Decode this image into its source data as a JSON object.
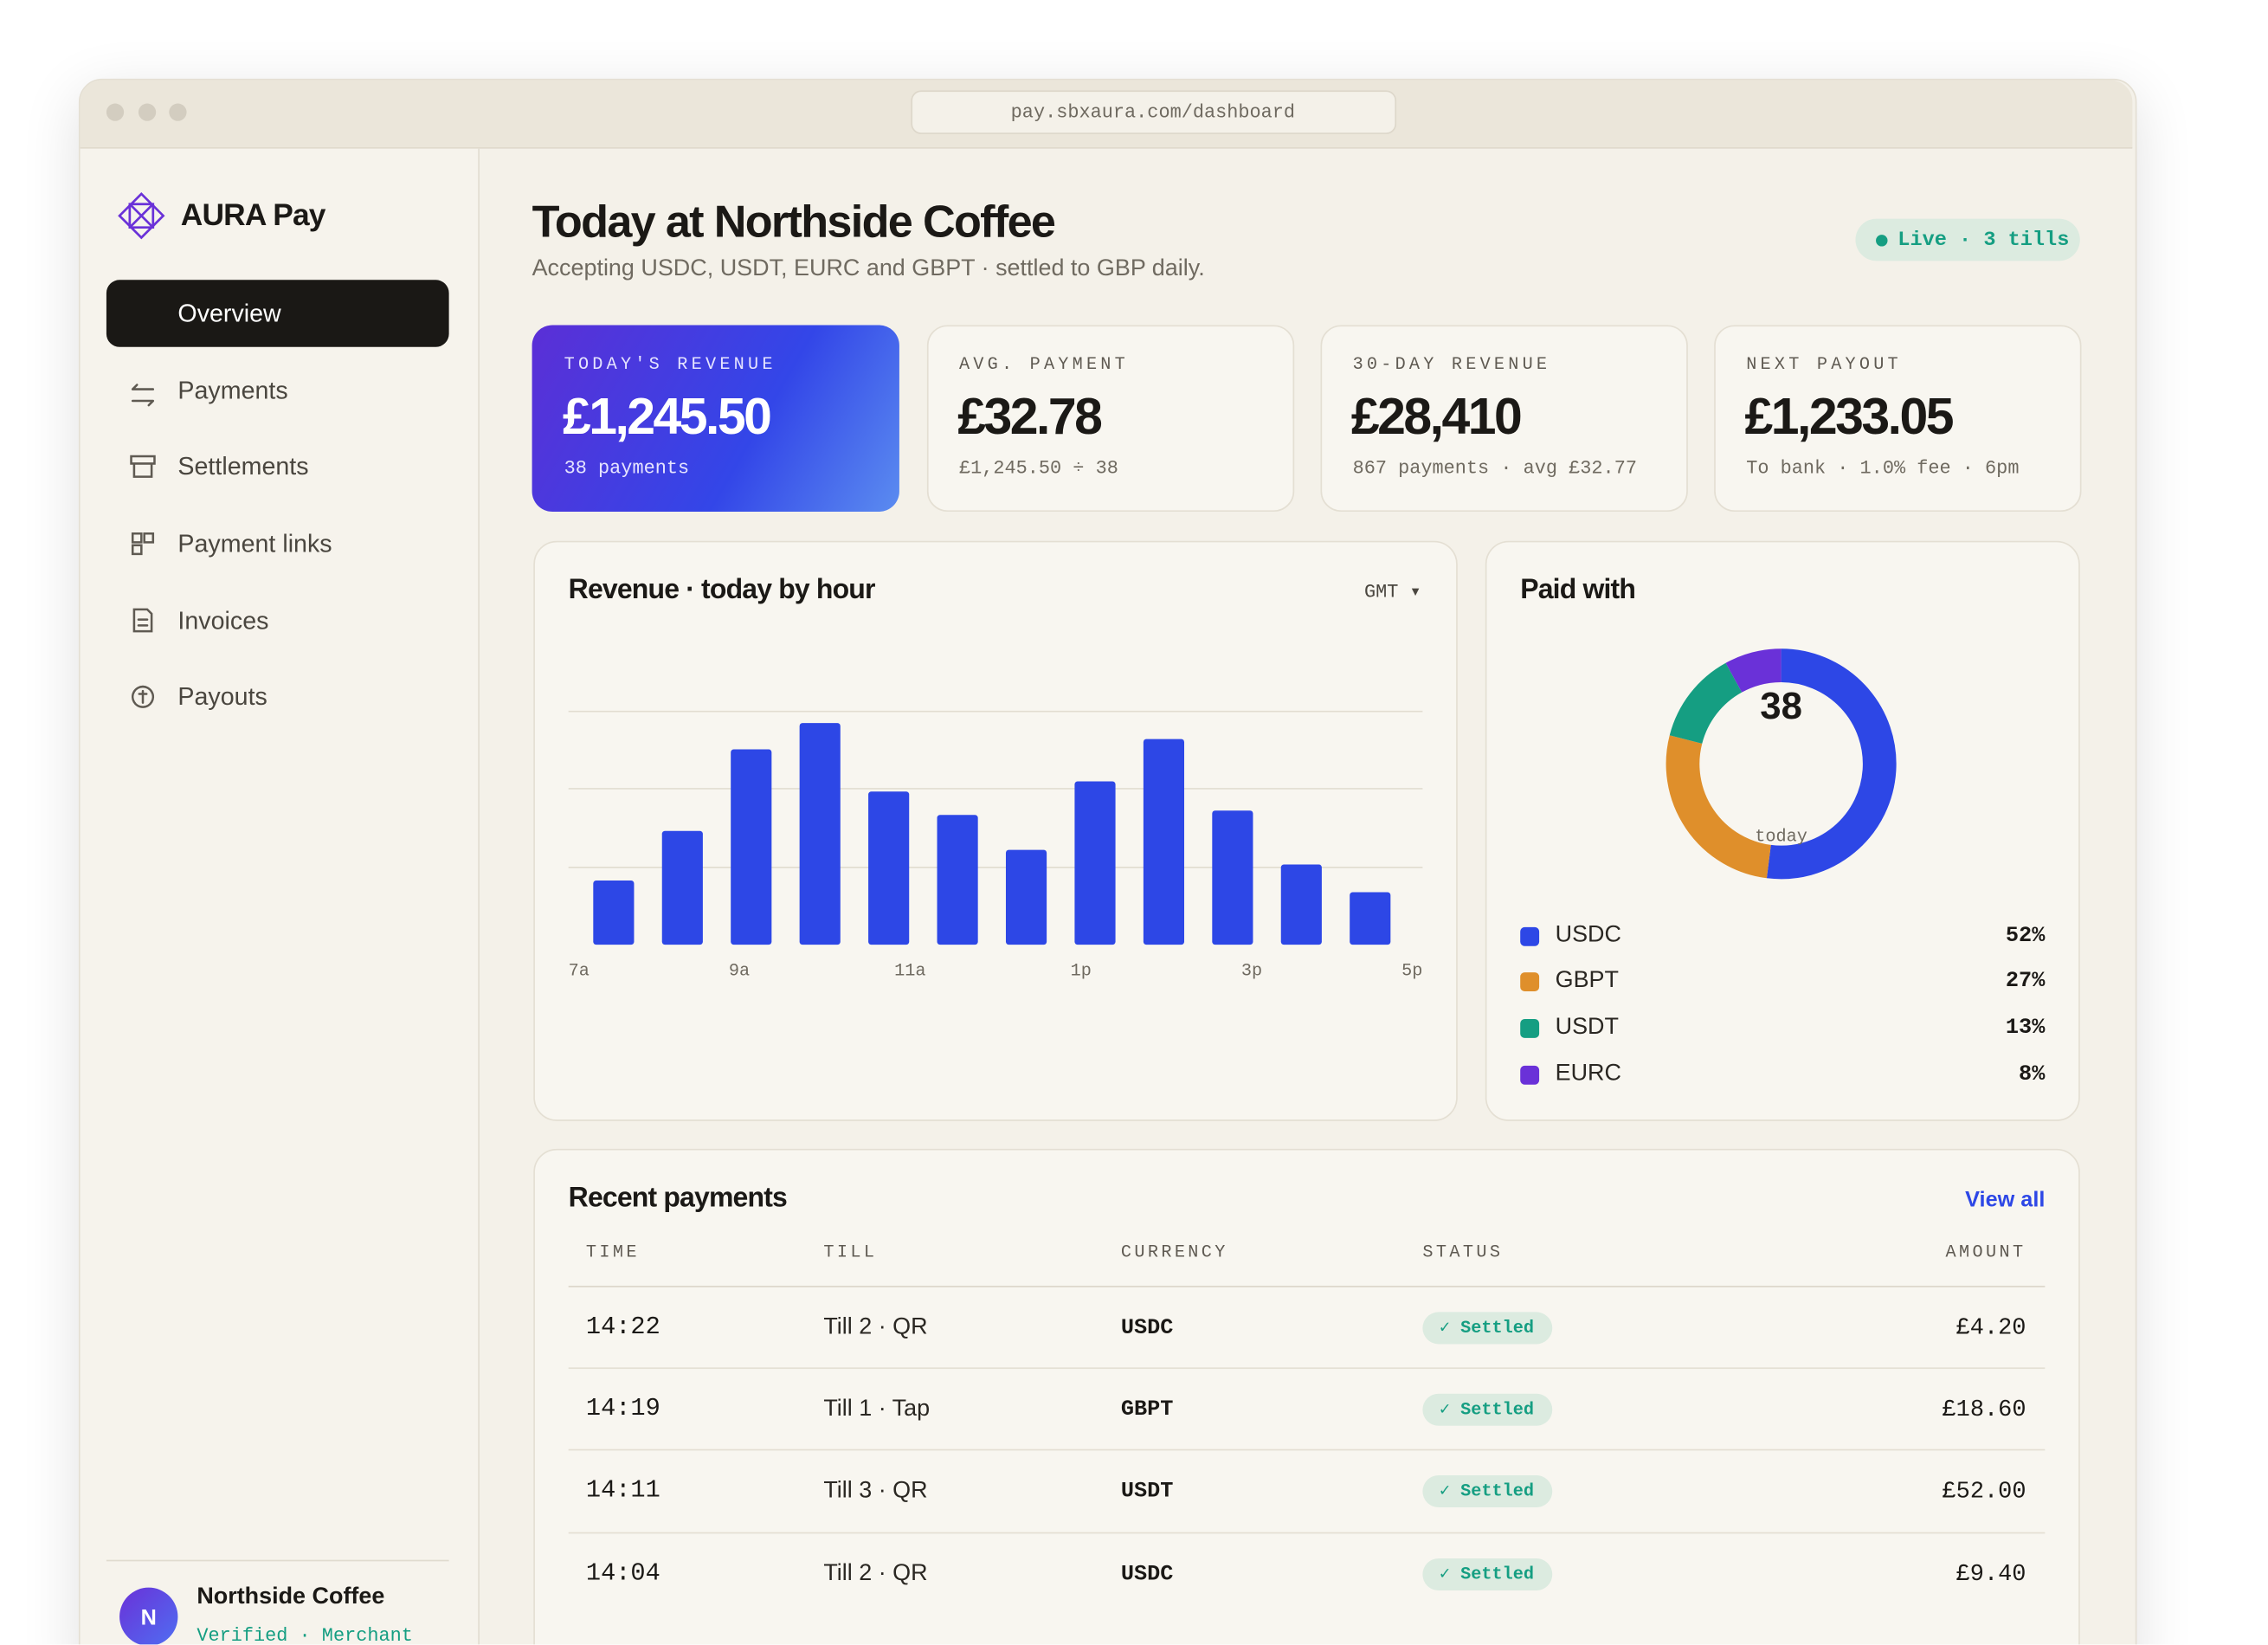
{
  "browser": {
    "url": "pay.sbxaura.com/dashboard"
  },
  "sidebar": {
    "brand": "AURA Pay",
    "nav": [
      "Overview",
      "Payments",
      "Settlements",
      "Payment links",
      "Invoices",
      "Payouts"
    ],
    "merchant": {
      "initial": "N",
      "name": "Northside Coffee",
      "status": "Verified · Merchant"
    }
  },
  "header": {
    "title": "Today at Northside Coffee",
    "subtitle": "Accepting USDC, USDT, EURC and GBPT · settled to GBP daily.",
    "badge": "Live · 3 tills"
  },
  "kpis": [
    {
      "label": "TODAY'S REVENUE",
      "value": "£1,245.50",
      "sub": "38 payments"
    },
    {
      "label": "AVG. PAYMENT",
      "value": "£32.78",
      "sub": "£1,245.50 ÷ 38"
    },
    {
      "label": "30-DAY REVENUE",
      "value": "£28,410",
      "sub": "867 payments · avg £32.77"
    },
    {
      "label": "NEXT PAYOUT",
      "value": "£1,233.05",
      "sub": "To bank · 1.0% fee · 6pm"
    }
  ],
  "revenue_chart": {
    "type": "bar",
    "title": "Revenue · today by hour",
    "timezone": "GMT ▾",
    "color": "#2d47e6",
    "x_labels": [
      "7a",
      "9a",
      "11a",
      "1p",
      "3p",
      "5p"
    ],
    "values": [
      44,
      78,
      134,
      152,
      105,
      89,
      65,
      112,
      141,
      92,
      55,
      36
    ],
    "ylim": [
      0,
      160
    ],
    "yticks": [
      53,
      107,
      160
    ],
    "grid": true
  },
  "paid_with": {
    "type": "donut",
    "title": "Paid with",
    "center_value": "38",
    "center_label": "today",
    "categories": [
      "USDC",
      "GBPT",
      "USDT",
      "EURC"
    ],
    "values": [
      52,
      27,
      13,
      8
    ],
    "value_labels": [
      "52%",
      "27%",
      "13%",
      "8%"
    ],
    "colors": [
      "#2d47e6",
      "#df8f2b",
      "#159e82",
      "#6a31d8"
    ]
  },
  "recent": {
    "title": "Recent payments",
    "link": "View all",
    "columns": [
      "TIME",
      "TILL",
      "CURRENCY",
      "STATUS",
      "AMOUNT"
    ],
    "rows": [
      [
        "14:22",
        "Till 2 · QR",
        "USDC",
        "✓ Settled",
        "£4.20"
      ],
      [
        "14:19",
        "Till 1 · Tap",
        "GBPT",
        "✓ Settled",
        "£18.60"
      ],
      [
        "14:11",
        "Till 3 · QR",
        "USDT",
        "✓ Settled",
        "£52.00"
      ],
      [
        "14:04",
        "Till 2 · QR",
        "USDC",
        "✓ Settled",
        "£9.40"
      ]
    ]
  }
}
